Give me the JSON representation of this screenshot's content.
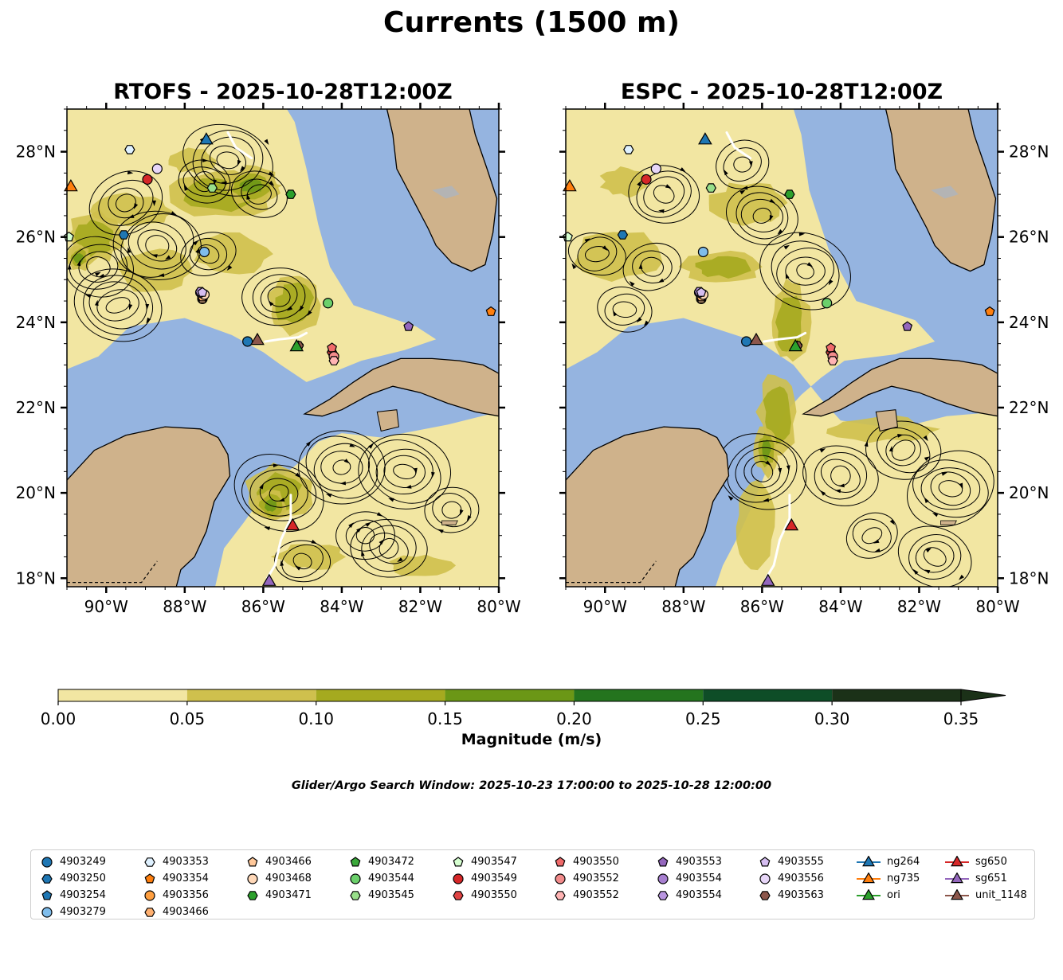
{
  "figure": {
    "title": "Currents (1500 m)",
    "panels": [
      {
        "title": "RTOFS - 2025-10-28T12:00Z"
      },
      {
        "title": "ESPC - 2025-10-28T12:00Z"
      }
    ],
    "colorbar_label": "Magnitude (m/s)",
    "search_window": "Glider/Argo Search Window: 2025-10-23 17:00:00 to 2025-10-28 12:00:00"
  },
  "colors": {
    "ocean": "#95b4e0",
    "land": "#cfb28b",
    "bins": [
      "#f2e6a2",
      "#cfc04d",
      "#a5aa1f",
      "#6b9716",
      "#24741e",
      "#0e4d27",
      "#1b3118"
    ]
  },
  "chart_data": {
    "type": "map",
    "map_extent": {
      "lon": [
        -91,
        -80
      ],
      "lat": [
        17.8,
        29
      ]
    },
    "lon_ticks": [
      -90,
      -88,
      -86,
      -84,
      -82,
      -80
    ],
    "lon_tick_labels": [
      "90°W",
      "88°W",
      "86°W",
      "84°W",
      "82°W",
      "80°W"
    ],
    "lat_ticks": [
      18,
      20,
      22,
      24,
      26,
      28
    ],
    "lat_tick_labels": [
      "18°N",
      "20°N",
      "22°N",
      "24°N",
      "26°N",
      "28°N"
    ],
    "colorbar": {
      "boundaries": [
        0,
        0.05,
        0.1,
        0.15,
        0.2,
        0.25,
        0.3,
        0.35
      ],
      "tick_labels": [
        "0.00",
        "0.05",
        "0.10",
        "0.15",
        "0.20",
        "0.25",
        "0.30",
        "0.35"
      ],
      "extend": "max"
    },
    "observations": [
      {
        "name": "4903249",
        "marker": "circle",
        "color": "#1f77b4",
        "lon": -86.4,
        "lat": 23.55
      },
      {
        "name": "4903250",
        "marker": "hexagon",
        "color": "#1f77b4",
        "lon": -89.55,
        "lat": 26.05
      },
      {
        "name": "4903254",
        "marker": "pentagon",
        "color": "#1f77b4",
        "lon": -84.2,
        "lat": 23.2
      },
      {
        "name": "4903279",
        "marker": "circle",
        "color": "#7fbdec",
        "lon": -87.5,
        "lat": 25.65
      },
      {
        "name": "4903353",
        "marker": "hexagon",
        "color": "#dff1ff",
        "lon": -89.4,
        "lat": 28.05
      },
      {
        "name": "4903354",
        "marker": "pentagon",
        "color": "#ff7f0e",
        "lon": -80.2,
        "lat": 24.25
      },
      {
        "name": "4903356",
        "marker": "circle",
        "color": "#ff9f40",
        "lon": -87.55,
        "lat": 24.55
      },
      {
        "name": "4903466",
        "marker": "pentagon",
        "color": "#ffc89a",
        "lon": -87.55,
        "lat": 24.55
      },
      {
        "name": "4903466",
        "marker": "hexagon",
        "color": "#ffb070",
        "lon": -87.55,
        "lat": 24.6
      },
      {
        "name": "4903468",
        "marker": "circle",
        "color": "#ffd8b8",
        "lon": -87.5,
        "lat": 24.65
      },
      {
        "name": "4903471",
        "marker": "hexagon",
        "color": "#2ca02c",
        "lon": -85.3,
        "lat": 27.0
      },
      {
        "name": "4903472",
        "marker": "pentagon",
        "color": "#3aa83a",
        "lon": -85.1,
        "lat": 23.45
      },
      {
        "name": "4903544",
        "marker": "circle",
        "color": "#6bd06b",
        "lon": -84.35,
        "lat": 24.45
      },
      {
        "name": "4903545",
        "marker": "hexagon",
        "color": "#98df8a",
        "lon": -87.3,
        "lat": 27.15
      },
      {
        "name": "4903547",
        "marker": "pentagon",
        "color": "#d6ffd0",
        "lon": -90.95,
        "lat": 26.0
      },
      {
        "name": "4903549",
        "marker": "circle",
        "color": "#d62728",
        "lon": -88.95,
        "lat": 27.35
      },
      {
        "name": "4903550",
        "marker": "hexagon",
        "color": "#e04444",
        "lon": -84.25,
        "lat": 23.3
      },
      {
        "name": "4903550",
        "marker": "pentagon",
        "color": "#f06a6a",
        "lon": -84.25,
        "lat": 23.4
      },
      {
        "name": "4903552",
        "marker": "circle",
        "color": "#f28b8b",
        "lon": -84.2,
        "lat": 23.2
      },
      {
        "name": "4903552",
        "marker": "hexagon",
        "color": "#ffb3b3",
        "lon": -84.2,
        "lat": 23.1
      },
      {
        "name": "4903553",
        "marker": "pentagon",
        "color": "#9467bd",
        "lon": -82.3,
        "lat": 23.9
      },
      {
        "name": "4903554",
        "marker": "circle",
        "color": "#a77fd0",
        "lon": -87.6,
        "lat": 24.7
      },
      {
        "name": "4903554",
        "marker": "hexagon",
        "color": "#b995e0",
        "lon": -87.6,
        "lat": 24.72
      },
      {
        "name": "4903555",
        "marker": "pentagon",
        "color": "#d5bdf0",
        "lon": -87.55,
        "lat": 24.7
      },
      {
        "name": "4903556",
        "marker": "circle",
        "color": "#e7d6f8",
        "lon": -88.7,
        "lat": 27.6
      },
      {
        "name": "4903563",
        "marker": "hexagon",
        "color": "#8c564b",
        "lon": -85.1,
        "lat": 23.45
      },
      {
        "name": "ng264",
        "marker": "triangle",
        "color": "#1f77b4",
        "lon": -87.45,
        "lat": 28.3
      },
      {
        "name": "ng735",
        "marker": "triangle",
        "color": "#ff7f0e",
        "lon": -90.9,
        "lat": 27.2
      },
      {
        "name": "ori",
        "marker": "triangle",
        "color": "#2ca02c",
        "lon": -85.15,
        "lat": 23.45
      },
      {
        "name": "sg650",
        "marker": "triangle",
        "color": "#d62728",
        "lon": -85.25,
        "lat": 19.25
      },
      {
        "name": "sg651",
        "marker": "triangle",
        "color": "#9467bd",
        "lon": -85.85,
        "lat": 17.95
      },
      {
        "name": "unit_1148",
        "marker": "triangle",
        "color": "#8c564b",
        "lon": -86.15,
        "lat": 23.6
      }
    ]
  },
  "legend": {
    "columns": [
      [
        {
          "label": "4903249",
          "marker": "circle",
          "color": "#1f77b4"
        },
        {
          "label": "4903250",
          "marker": "hexagon",
          "color": "#1f77b4"
        },
        {
          "label": "4903254",
          "marker": "pentagon",
          "color": "#1f77b4"
        },
        {
          "label": "4903279",
          "marker": "circle",
          "color": "#7fbdec"
        }
      ],
      [
        {
          "label": "4903353",
          "marker": "hexagon",
          "color": "#dff1ff"
        },
        {
          "label": "4903354",
          "marker": "pentagon",
          "color": "#ff7f0e"
        },
        {
          "label": "4903356",
          "marker": "circle",
          "color": "#ff9f40"
        },
        {
          "label": "4903466",
          "marker": "hexagon",
          "color": "#ffb070"
        }
      ],
      [
        {
          "label": "4903466",
          "marker": "pentagon",
          "color": "#ffc89a"
        },
        {
          "label": "4903468",
          "marker": "circle",
          "color": "#ffd8b8"
        },
        {
          "label": "4903471",
          "marker": "hexagon",
          "color": "#2ca02c"
        }
      ],
      [
        {
          "label": "4903472",
          "marker": "pentagon",
          "color": "#3aa83a"
        },
        {
          "label": "4903544",
          "marker": "circle",
          "color": "#6bd06b"
        },
        {
          "label": "4903545",
          "marker": "hexagon",
          "color": "#98df8a"
        }
      ],
      [
        {
          "label": "4903547",
          "marker": "pentagon",
          "color": "#d6ffd0"
        },
        {
          "label": "4903549",
          "marker": "circle",
          "color": "#d62728"
        },
        {
          "label": "4903550",
          "marker": "hexagon",
          "color": "#e04444"
        }
      ],
      [
        {
          "label": "4903550",
          "marker": "pentagon",
          "color": "#f06a6a"
        },
        {
          "label": "4903552",
          "marker": "circle",
          "color": "#f28b8b"
        },
        {
          "label": "4903552",
          "marker": "hexagon",
          "color": "#ffb3b3"
        }
      ],
      [
        {
          "label": "4903553",
          "marker": "pentagon",
          "color": "#9467bd"
        },
        {
          "label": "4903554",
          "marker": "circle",
          "color": "#a77fd0"
        },
        {
          "label": "4903554",
          "marker": "hexagon",
          "color": "#b995e0"
        }
      ],
      [
        {
          "label": "4903555",
          "marker": "pentagon",
          "color": "#d5bdf0"
        },
        {
          "label": "4903556",
          "marker": "circle",
          "color": "#e7d6f8"
        },
        {
          "label": "4903563",
          "marker": "hexagon",
          "color": "#8c564b"
        }
      ],
      [
        {
          "label": "ng264",
          "marker": "triangle-line",
          "color": "#1f77b4"
        },
        {
          "label": "ng735",
          "marker": "triangle-line",
          "color": "#ff7f0e"
        },
        {
          "label": "ori",
          "marker": "triangle-line",
          "color": "#2ca02c"
        }
      ],
      [
        {
          "label": "sg650",
          "marker": "triangle-line",
          "color": "#d62728"
        },
        {
          "label": "sg651",
          "marker": "triangle-line",
          "color": "#9467bd"
        },
        {
          "label": "unit_1148",
          "marker": "triangle-line",
          "color": "#8c564b"
        }
      ]
    ]
  }
}
